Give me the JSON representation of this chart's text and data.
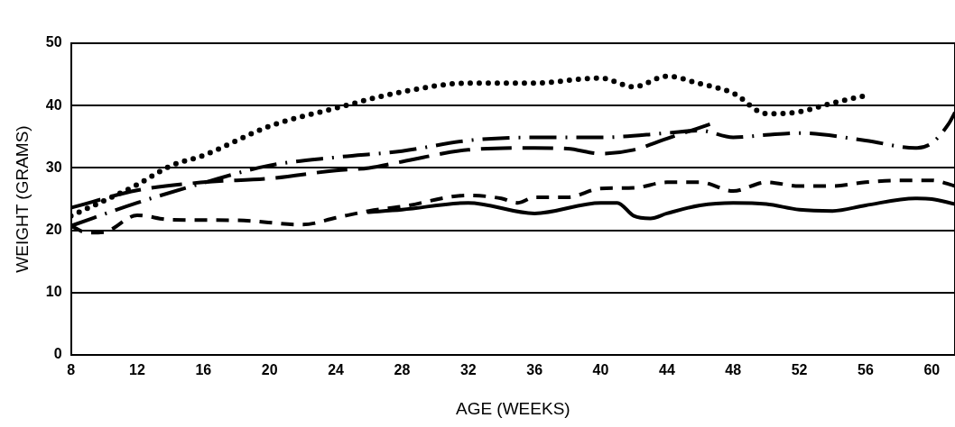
{
  "chart_data": {
    "type": "line",
    "xlabel": "AGE (WEEKS)",
    "ylabel": "WEIGHT (GRAMS)",
    "xlim": [
      8,
      61.4
    ],
    "xticks": [
      8,
      12,
      16,
      20,
      24,
      28,
      32,
      36,
      40,
      44,
      48,
      52,
      56,
      60
    ],
    "ylim": [
      0,
      50
    ],
    "yticks": [
      0,
      10,
      20,
      30,
      40,
      50
    ],
    "grid": "y",
    "marker": "none",
    "series": [
      {
        "color": "#000000",
        "line_style": "dotted",
        "x": [
          8,
          12,
          14,
          16,
          20,
          24,
          28,
          32,
          36,
          39,
          40,
          42,
          44,
          46,
          48,
          50,
          52,
          54,
          56
        ],
        "values": [
          22.3,
          27.3,
          30.3,
          32,
          36.7,
          39.6,
          42.2,
          43.6,
          43.6,
          44.3,
          44.4,
          43,
          44.7,
          43.5,
          42,
          38.7,
          39,
          40.4,
          41.6
        ]
      },
      {
        "color": "#000000",
        "line_style": "dashdot",
        "x": [
          8,
          12,
          16,
          20,
          24,
          28,
          32,
          36,
          40,
          44,
          46,
          48,
          50,
          52,
          56,
          59,
          60,
          61,
          61.4
        ],
        "values": [
          20.7,
          24.4,
          27.6,
          30.4,
          31.7,
          32.7,
          34.4,
          34.9,
          34.9,
          35.6,
          36,
          34.9,
          35.3,
          35.6,
          34.4,
          33.2,
          34,
          37,
          38.9
        ]
      },
      {
        "color": "#000000",
        "line_style": "longdash",
        "x": [
          8,
          12,
          16,
          20,
          24,
          26,
          28,
          32,
          36,
          38,
          40,
          42,
          44,
          46.6
        ],
        "values": [
          23.6,
          26.4,
          27.7,
          28.3,
          29.6,
          30,
          31,
          32.9,
          33.2,
          33.1,
          32.3,
          32.9,
          34.7,
          37
        ]
      },
      {
        "color": "#000000",
        "line_style": "dashed",
        "x": [
          8,
          9,
          10,
          12,
          14,
          18,
          22,
          24,
          26,
          28,
          32,
          34,
          35,
          36,
          38,
          40,
          42,
          44,
          46,
          48,
          50,
          52,
          54,
          56,
          58,
          60,
          61.4
        ],
        "values": [
          20.7,
          19.6,
          19.7,
          22.4,
          21.7,
          21.6,
          20.9,
          22,
          23.1,
          23.8,
          25.6,
          25.1,
          24.4,
          25.3,
          25.3,
          26.7,
          26.8,
          27.7,
          27.7,
          26.3,
          27.7,
          27.1,
          27.1,
          27.7,
          28,
          28,
          27.1
        ]
      },
      {
        "color": "#000000",
        "line_style": "solid",
        "x": [
          25.9,
          28,
          32,
          36,
          40,
          41,
          42,
          43,
          44,
          46,
          48,
          50,
          52,
          54,
          56,
          59,
          60,
          61.4
        ],
        "values": [
          22.9,
          23.3,
          24.4,
          22.7,
          24.4,
          24.4,
          22.3,
          21.9,
          22.7,
          24,
          24.4,
          24.2,
          23.3,
          23.1,
          24,
          25.1,
          25,
          24.2
        ]
      }
    ]
  }
}
